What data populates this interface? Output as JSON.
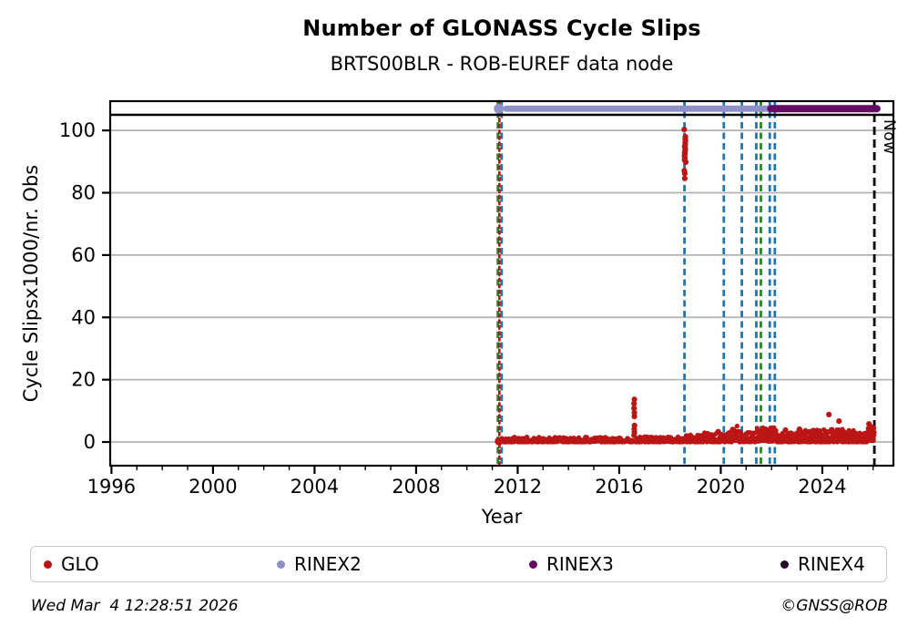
{
  "header": {
    "title": "Number of GLONASS Cycle Slips",
    "subtitle": "BRTS00BLR - ROB-EUREF data node"
  },
  "footer": {
    "timestamp": "Wed Mar  4 12:28:51 2026",
    "credit": "©GNSS@ROB"
  },
  "legend": {
    "items": [
      {
        "label": "GLO",
        "color": "#bb1616"
      },
      {
        "label": "RINEX2",
        "color": "#9090c8"
      },
      {
        "label": "RINEX3",
        "color": "#650a65"
      },
      {
        "label": "RINEX4",
        "color": "#260b26"
      }
    ]
  },
  "chart_data": {
    "type": "scatter",
    "title": "Number of GLONASS Cycle Slips",
    "subtitle": "BRTS00BLR - ROB-EUREF data node",
    "xlabel": "Year",
    "ylabel": "Cycle Slipsx1000/nr. Obs",
    "xlim": [
      1995.95,
      2026.8
    ],
    "ylim": [
      -7.6,
      109.4
    ],
    "xticks_major": [
      1996,
      2000,
      2004,
      2008,
      2012,
      2016,
      2020,
      2024
    ],
    "xtick_minor_step": 1,
    "yticks": [
      0,
      20,
      40,
      60,
      80,
      100
    ],
    "grid": "horizontal-only",
    "grid_color": "#b3b3b3",
    "threshold_line_y": 105,
    "now_line": {
      "year": 2026.05,
      "label": "Now",
      "color": "#000000",
      "style": "dashed"
    },
    "bands": [
      {
        "name": "RINEX2",
        "from": 2011.55,
        "to": 2021.93,
        "y": 107,
        "color": "#9090c8",
        "thickness": 7,
        "start_marker": {
          "year": 2011.26,
          "radius": 5.5
        }
      },
      {
        "name": "RINEX3",
        "from": 2021.97,
        "to": 2026.15,
        "y": 107,
        "color": "#650a65",
        "thickness": 8
      }
    ],
    "events": [
      {
        "year": 2011.22,
        "color": "#228b22",
        "style": "dashed"
      },
      {
        "year": 2011.28,
        "color": "#bb1616",
        "style": "dotted"
      },
      {
        "year": 2011.37,
        "color": "#1f77b4",
        "style": "dashed"
      },
      {
        "year": 2018.57,
        "color": "#1f77b4",
        "style": "dashed"
      },
      {
        "year": 2020.12,
        "color": "#1f77b4",
        "style": "dashed"
      },
      {
        "year": 2020.83,
        "color": "#1f77b4",
        "style": "dashed"
      },
      {
        "year": 2021.4,
        "color": "#1f77b4",
        "style": "dashed"
      },
      {
        "year": 2021.58,
        "color": "#228b22",
        "style": "dashed"
      },
      {
        "year": 2021.93,
        "color": "#1f77b4",
        "style": "dashed"
      },
      {
        "year": 2022.13,
        "color": "#1f77b4",
        "style": "dashed"
      }
    ],
    "series": {
      "name": "GLO",
      "color": "#bb1616",
      "marker_radius": 2.6,
      "first_point": {
        "year": 2011.26,
        "value": 0.2,
        "radius": 4.5
      },
      "segments": [
        {
          "from": 2011.3,
          "to": 2016.55,
          "vmin": 0,
          "vmax": 1.6,
          "pts": 340,
          "exp": 2.5
        },
        {
          "from": 2016.63,
          "to": 2018.5,
          "vmin": 0,
          "vmax": 1.7,
          "pts": 135,
          "exp": 2.5
        },
        {
          "from": 2018.55,
          "to": 2019.35,
          "vmin": 0,
          "vmax": 2.3,
          "pts": 62,
          "exp": 2.2
        },
        {
          "from": 2019.35,
          "to": 2020.1,
          "vmin": 0,
          "vmax": 3.0,
          "pts": 60,
          "exp": 2.2
        },
        {
          "from": 2020.1,
          "to": 2020.45,
          "vmin": 0,
          "vmax": 3.3,
          "pts": 30,
          "exp": 1.8
        },
        {
          "from": 2020.45,
          "to": 2020.72,
          "vmin": 0.4,
          "vmax": 5.2,
          "pts": 28,
          "exp": 1.6
        },
        {
          "from": 2020.72,
          "to": 2021.4,
          "vmin": 0,
          "vmax": 3.3,
          "pts": 62,
          "exp": 1.9
        },
        {
          "from": 2021.4,
          "to": 2022.2,
          "vmin": 0.2,
          "vmax": 4.7,
          "pts": 85,
          "exp": 1.7
        },
        {
          "from": 2022.2,
          "to": 2023.05,
          "vmin": 0,
          "vmax": 3.2,
          "pts": 85,
          "exp": 2.1
        },
        {
          "from": 2023.05,
          "to": 2024.05,
          "vmin": 0,
          "vmax": 3.9,
          "pts": 105,
          "exp": 2.1
        },
        {
          "from": 2024.05,
          "to": 2025.25,
          "vmin": 0,
          "vmax": 4.2,
          "pts": 125,
          "exp": 2.1
        },
        {
          "from": 2025.25,
          "to": 2025.78,
          "vmin": 0,
          "vmax": 3.0,
          "pts": 52,
          "exp": 2.1
        },
        {
          "from": 2025.78,
          "to": 2026.05,
          "vmin": 0.4,
          "vmax": 5.0,
          "pts": 40,
          "exp": 1.6
        }
      ],
      "spikes": [
        {
          "year": 2016.59,
          "jitter": 0.012,
          "values": [
            2.1,
            3.2,
            4.2,
            5.3,
            8.2,
            9.4,
            10.8,
            12.3,
            13.7
          ]
        },
        {
          "year": 2018.59,
          "jitter": 0.03,
          "values": [
            84.6,
            86.2,
            87.1,
            89.8,
            90.5,
            91.1,
            91.8,
            92.4,
            93.0,
            93.6,
            94.2,
            94.8,
            95.4,
            96.0,
            96.7,
            97.3,
            98.0,
            100.3
          ]
        }
      ],
      "outliers": [
        [
          2024.26,
          8.8
        ],
        [
          2024.66,
          6.7
        ],
        [
          2025.84,
          5.8
        ],
        [
          2026.0,
          4.6
        ],
        [
          2023.1,
          4.1
        ],
        [
          2022.55,
          3.8
        ],
        [
          2019.9,
          3.3
        ]
      ]
    }
  }
}
